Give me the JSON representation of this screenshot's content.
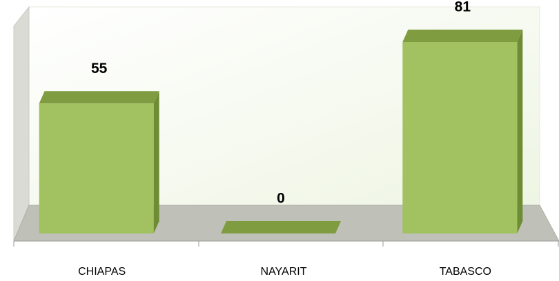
{
  "chart_data": {
    "type": "bar3d",
    "categories": [
      "CHIAPAS",
      "NAYARIT",
      "TABASCO"
    ],
    "values": [
      55,
      0,
      81
    ],
    "color": "#a2c262"
  }
}
